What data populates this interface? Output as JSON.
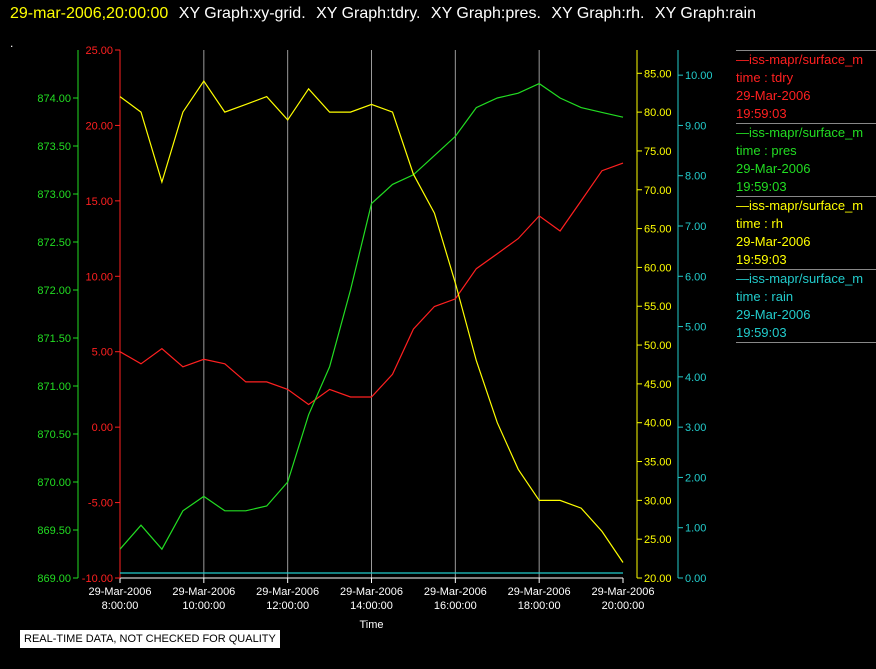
{
  "header": {
    "timestamp": "29-mar-2006,20:00:00",
    "graph_titles": [
      "XY Graph:xy-grid.",
      "XY Graph:tdry.",
      "XY Graph:pres.",
      "XY Graph:rh.",
      "XY Graph:rain"
    ]
  },
  "dot_text": ".",
  "notice": "REAL-TIME DATA, NOT CHECKED FOR QUALITY",
  "legend": [
    {
      "line1": "—iss-mapr/surface_m",
      "line2": "time : tdry",
      "line3": "29-Mar-2006",
      "line4": "19:59:03",
      "color": "#ff2020"
    },
    {
      "line1": "—iss-mapr/surface_m",
      "line2": "time : pres",
      "line3": "29-Mar-2006",
      "line4": "19:59:03",
      "color": "#22dd22"
    },
    {
      "line1": "—iss-mapr/surface_m",
      "line2": "time : rh",
      "line3": "29-Mar-2006",
      "line4": "19:59:03",
      "color": "#ffff00"
    },
    {
      "line1": "—iss-mapr/surface_m",
      "line2": "time : rain",
      "line3": "29-Mar-2006",
      "line4": "19:59:03",
      "color": "#22cccc"
    }
  ],
  "chart_data": {
    "type": "line",
    "xlabel": "Time",
    "x_ticks": [
      {
        "date": "29-Mar-2006",
        "time": "8:00:00"
      },
      {
        "date": "29-Mar-2006",
        "time": "10:00:00"
      },
      {
        "date": "29-Mar-2006",
        "time": "12:00:00"
      },
      {
        "date": "29-Mar-2006",
        "time": "14:00:00"
      },
      {
        "date": "29-Mar-2006",
        "time": "16:00:00"
      },
      {
        "date": "29-Mar-2006",
        "time": "18:00:00"
      },
      {
        "date": "29-Mar-2006",
        "time": "20:00:00"
      }
    ],
    "xlim": [
      "8:00",
      "20:00"
    ],
    "grid_x": true,
    "x": [
      "8:00",
      "8:30",
      "9:00",
      "9:30",
      "10:00",
      "10:30",
      "11:00",
      "11:30",
      "12:00",
      "12:30",
      "13:00",
      "13:30",
      "14:00",
      "14:30",
      "15:00",
      "15:30",
      "16:00",
      "16:30",
      "17:00",
      "17:30",
      "18:00",
      "18:30",
      "19:00",
      "19:30",
      "20:00"
    ],
    "axes": [
      {
        "id": "pres",
        "side": "left-outer",
        "color": "#22dd22",
        "ylim": [
          869.0,
          874.5
        ],
        "ticks": [
          "869.00",
          "869.50",
          "870.00",
          "870.50",
          "871.00",
          "871.50",
          "872.00",
          "872.50",
          "873.00",
          "873.50",
          "874.00"
        ]
      },
      {
        "id": "tdry",
        "side": "left-inner",
        "color": "#ff2020",
        "ylim": [
          -10.0,
          25.0
        ],
        "ticks": [
          "-10.00",
          "-5.00",
          "0.00",
          "5.00",
          "10.00",
          "15.00",
          "20.00",
          "25.00"
        ]
      },
      {
        "id": "rh",
        "side": "right-inner",
        "color": "#ffff00",
        "ylim": [
          20.0,
          88.0
        ],
        "ticks": [
          "20.00",
          "25.00",
          "30.00",
          "35.00",
          "40.00",
          "45.00",
          "50.00",
          "55.00",
          "60.00",
          "65.00",
          "70.00",
          "75.00",
          "80.00",
          "85.00"
        ]
      },
      {
        "id": "rain",
        "side": "right-outer",
        "color": "#22cccc",
        "ylim": [
          0.0,
          10.5
        ],
        "ticks": [
          "0.00",
          "1.00",
          "2.00",
          "3.00",
          "4.00",
          "5.00",
          "6.00",
          "7.00",
          "8.00",
          "9.00",
          "10.00"
        ]
      }
    ],
    "series": [
      {
        "axis": "tdry",
        "color": "#ff2020",
        "values": [
          5.0,
          4.2,
          5.2,
          4.0,
          4.5,
          4.2,
          3.0,
          3.0,
          2.5,
          1.5,
          2.5,
          2.0,
          2.0,
          3.5,
          6.5,
          8.0,
          8.5,
          10.5,
          11.5,
          12.5,
          14.0,
          13.0,
          15.0,
          17.0,
          17.5
        ]
      },
      {
        "axis": "pres",
        "color": "#22dd22",
        "values": [
          869.3,
          869.55,
          869.3,
          869.7,
          869.85,
          869.7,
          869.7,
          869.75,
          870.0,
          870.7,
          871.2,
          872.0,
          872.9,
          873.1,
          873.2,
          873.4,
          873.6,
          873.9,
          874.0,
          874.05,
          874.15,
          874.0,
          873.9,
          873.85,
          873.8
        ]
      },
      {
        "axis": "rh",
        "color": "#ffff00",
        "values": [
          82.0,
          80.0,
          71.0,
          80.0,
          84.0,
          80.0,
          81.0,
          82.0,
          79.0,
          83.0,
          80.0,
          80.0,
          81.0,
          80.0,
          72.0,
          67.0,
          58.0,
          48.0,
          40.0,
          34.0,
          30.0,
          30.0,
          29.0,
          26.0,
          22.0
        ]
      },
      {
        "axis": "rain",
        "color": "#22cccc",
        "values": [
          0.1,
          0.1,
          0.1,
          0.1,
          0.1,
          0.1,
          0.1,
          0.1,
          0.1,
          0.1,
          0.1,
          0.1,
          0.1,
          0.1,
          0.1,
          0.1,
          0.1,
          0.1,
          0.1,
          0.1,
          0.1,
          0.1,
          0.1,
          0.1,
          0.1
        ]
      }
    ]
  }
}
